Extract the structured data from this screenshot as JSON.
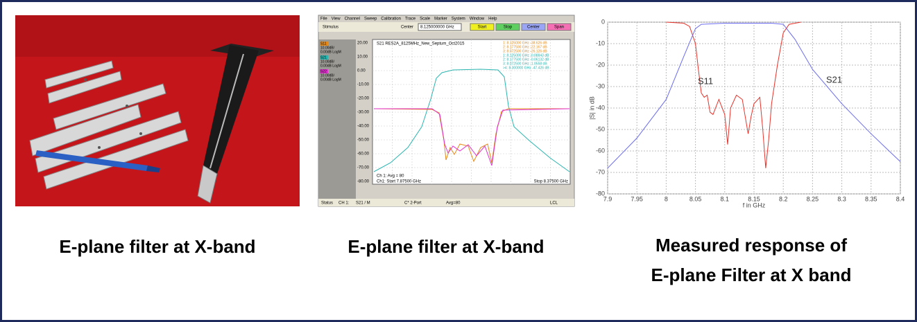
{
  "captions": {
    "photo": "E-plane filter at X-band",
    "vna": "E-plane filter at X-band",
    "chart": [
      "Measured response of",
      "E-plane Filter at X band"
    ]
  },
  "vna": {
    "menu": [
      "File",
      "View",
      "Channel",
      "Sweep",
      "Calibration",
      "Trace",
      "Scale",
      "Marker",
      "System",
      "Window",
      "Help"
    ],
    "stimulus": "Stimulus",
    "center_label": "Center",
    "center_value": "8.125000000 GHz",
    "buttons": [
      "Start",
      "Stop",
      "Center",
      "Span"
    ],
    "traces": [
      [
        "S11",
        "10.00dB/",
        "0.00dB LogM"
      ],
      [
        "S21",
        "10.00dB/",
        "0.00dB LogM"
      ],
      [
        "S22",
        "10.00dB/",
        "0.00dB LogM"
      ]
    ],
    "trace_title": "S21 RES2A_8125MHz_New_Septum_Oct2015",
    "yticks": [
      "20.00",
      "10.00",
      "0.00",
      "-10.00",
      "-20.00",
      "-30.00",
      "-40.00",
      "-50.00",
      "-60.00",
      "-70.00",
      "-80.00"
    ],
    "markers": [
      "1:   8.125000 GHz  -38.626 dB",
      "2:   8.177500 GHz  -22.167 dB",
      "3:   8.072500 GHz  -26.126 dB",
      "1:   8.125000 GHz  -0.08843 dB",
      "2:   8.177500 GHz  -0.06132 dB",
      "3:   8.072500 GHz  -1.0558 dB",
      ">4:  8.300000 GHz  -47.426 dB"
    ],
    "avg": "Ch 1: Avg = 80",
    "start": "Ch1: Start 7.87500 GHz",
    "stop": "Stop 8.37500 GHz",
    "status": [
      "Status",
      "CH 1:",
      "S21 / M",
      "C* 2-Port",
      "Avg=80",
      "LCL"
    ]
  },
  "chart_data": {
    "type": "line",
    "xlabel": "f in GHz",
    "ylabel": "|S| in dB",
    "xlim": [
      7.9,
      8.4
    ],
    "ylim": [
      -80,
      0
    ],
    "xticks": [
      7.9,
      7.95,
      8,
      8.05,
      8.1,
      8.15,
      8.2,
      8.25,
      8.3,
      8.35,
      8.4
    ],
    "yticks": [
      0,
      -10,
      -20,
      -30,
      -40,
      -50,
      -60,
      -70,
      -80
    ],
    "grid": true,
    "annotations": [
      "S11",
      "S21"
    ],
    "series": [
      {
        "name": "S11",
        "color": "#e8322a",
        "x": [
          8.0,
          8.03,
          8.04,
          8.05,
          8.055,
          8.06,
          8.065,
          8.07,
          8.075,
          8.08,
          8.09,
          8.1,
          8.105,
          8.11,
          8.12,
          8.13,
          8.14,
          8.145,
          8.15,
          8.16,
          8.165,
          8.17,
          8.175,
          8.18,
          8.19,
          8.2,
          8.21,
          8.23
        ],
        "values": [
          0,
          -0.5,
          -2,
          -10,
          -22,
          -33,
          -35,
          -34,
          -42,
          -43,
          -36,
          -43,
          -57,
          -40,
          -34,
          -36,
          -52,
          -44,
          -38,
          -35,
          -50,
          -68,
          -55,
          -38,
          -20,
          -5,
          -1,
          0
        ]
      },
      {
        "name": "S21",
        "color": "#6b6bf0",
        "x": [
          7.9,
          7.95,
          8.0,
          8.03,
          8.05,
          8.06,
          8.1,
          8.15,
          8.18,
          8.2,
          8.22,
          8.25,
          8.3,
          8.35,
          8.4
        ],
        "values": [
          -68,
          -54,
          -36,
          -16,
          -3,
          -1,
          -0.5,
          -0.5,
          -0.5,
          -1,
          -8,
          -22,
          -38,
          -52,
          -65
        ]
      }
    ]
  }
}
